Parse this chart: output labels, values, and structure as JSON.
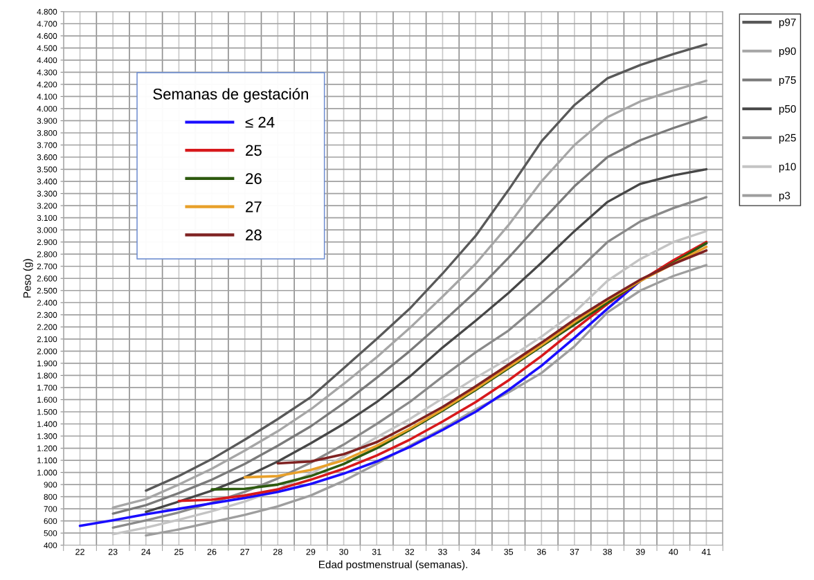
{
  "chart_data": {
    "type": "line",
    "xlabel": "Edad postmenstrual (semanas).",
    "ylabel": "Peso (g)",
    "legend_title": "Semanas de gestación",
    "categories": [
      "22",
      "23",
      "24",
      "25",
      "26",
      "27",
      "28",
      "29",
      "30",
      "31",
      "32",
      "33",
      "34",
      "35",
      "36",
      "37",
      "38",
      "39",
      "40",
      "41"
    ],
    "ylim": [
      400,
      4800
    ],
    "yticks": [
      {
        "value": 400,
        "label": "400"
      },
      {
        "value": 500,
        "label": "500"
      },
      {
        "value": 600,
        "label": "600"
      },
      {
        "value": 700,
        "label": "700"
      },
      {
        "value": 800,
        "label": "800"
      },
      {
        "value": 900,
        "label": "900"
      },
      {
        "value": 1000,
        "label": "1.000"
      },
      {
        "value": 1100,
        "label": "1.100"
      },
      {
        "value": 1200,
        "label": "1.200"
      },
      {
        "value": 1300,
        "label": "1.300"
      },
      {
        "value": 1400,
        "label": "1.400"
      },
      {
        "value": 1500,
        "label": "1.500"
      },
      {
        "value": 1600,
        "label": "1.600"
      },
      {
        "value": 1700,
        "label": "1.700"
      },
      {
        "value": 1800,
        "label": "1.800"
      },
      {
        "value": 1900,
        "label": "1.900"
      },
      {
        "value": 2000,
        "label": "2.000"
      },
      {
        "value": 2100,
        "label": "2.100"
      },
      {
        "value": 2200,
        "label": "2.200"
      },
      {
        "value": 2300,
        "label": "2.300"
      },
      {
        "value": 2400,
        "label": "2.400"
      },
      {
        "value": 2500,
        "label": "2.500"
      },
      {
        "value": 2600,
        "label": "2.600"
      },
      {
        "value": 2700,
        "label": "2.700"
      },
      {
        "value": 2800,
        "label": "2.800"
      },
      {
        "value": 2900,
        "label": "2.900"
      },
      {
        "value": 3000,
        "label": "3.000"
      },
      {
        "value": 3100,
        "label": "3.100"
      },
      {
        "value": 3200,
        "label": "3.200"
      },
      {
        "value": 3300,
        "label": "3.300"
      },
      {
        "value": 3400,
        "label": "3.400"
      },
      {
        "value": 3500,
        "label": "3.500"
      },
      {
        "value": 3600,
        "label": "3.600"
      },
      {
        "value": 3700,
        "label": "3.700"
      },
      {
        "value": 3800,
        "label": "3.800"
      },
      {
        "value": 3900,
        "label": "3.900"
      },
      {
        "value": 4000,
        "label": "4.000"
      },
      {
        "value": 4100,
        "label": "4.100"
      },
      {
        "value": 4200,
        "label": "4.200"
      },
      {
        "value": 4300,
        "label": "4.300"
      },
      {
        "value": 4400,
        "label": "4.400"
      },
      {
        "value": 4500,
        "label": "4.500"
      },
      {
        "value": 4600,
        "label": "4.600"
      },
      {
        "value": 4700,
        "label": "4.700"
      },
      {
        "value": 4800,
        "label": "4.800"
      }
    ],
    "grid": true,
    "legend": "top right",
    "marker": "none",
    "line_style": "solid",
    "series": [
      {
        "name": "p97",
        "color": "#595959",
        "values": [
          null,
          null,
          850,
          970,
          1110,
          1270,
          1440,
          1620,
          1860,
          2100,
          2350,
          2640,
          2950,
          3330,
          3730,
          4030,
          4250,
          4360,
          4450,
          4530
        ]
      },
      {
        "name": "p90",
        "color": "#a6a6a6",
        "values": [
          null,
          710,
          780,
          900,
          1030,
          1180,
          1340,
          1520,
          1730,
          1950,
          2190,
          2450,
          2720,
          3040,
          3400,
          3700,
          3930,
          4060,
          4150,
          4230
        ]
      },
      {
        "name": "p75",
        "color": "#7a7a7a",
        "values": [
          null,
          660,
          730,
          830,
          940,
          1070,
          1220,
          1380,
          1570,
          1780,
          2000,
          2240,
          2490,
          2770,
          3070,
          3360,
          3600,
          3740,
          3840,
          3930
        ]
      },
      {
        "name": "p50",
        "color": "#474747",
        "values": [
          null,
          null,
          675,
          760,
          850,
          960,
          1090,
          1240,
          1400,
          1580,
          1790,
          2030,
          2250,
          2480,
          2730,
          2990,
          3230,
          3380,
          3450,
          3500
        ]
      },
      {
        "name": "p25",
        "color": "#8a8a8a",
        "values": [
          null,
          545,
          605,
          670,
          750,
          840,
          950,
          1080,
          1230,
          1400,
          1580,
          1790,
          1990,
          2170,
          2400,
          2640,
          2900,
          3070,
          3180,
          3270
        ]
      },
      {
        "name": "p10",
        "color": "#c4c4c4",
        "values": [
          null,
          490,
          545,
          610,
          680,
          760,
          860,
          990,
          1130,
          1290,
          1440,
          1610,
          1780,
          1940,
          2120,
          2320,
          2580,
          2760,
          2900,
          2990
        ]
      },
      {
        "name": "p3",
        "color": "#9e9e9e",
        "values": [
          null,
          null,
          480,
          530,
          590,
          650,
          720,
          810,
          930,
          1070,
          1220,
          1360,
          1520,
          1660,
          1820,
          2040,
          2320,
          2500,
          2620,
          2710
        ]
      },
      {
        "name": "≤ 24",
        "color": "#1a0dff",
        "values": [
          560,
          605,
          655,
          700,
          745,
          790,
          840,
          905,
          990,
          1090,
          1210,
          1350,
          1500,
          1680,
          1880,
          2110,
          2350,
          2580,
          2740,
          2890
        ]
      },
      {
        "name": "25",
        "color": "#d7191c",
        "values": [
          null,
          null,
          null,
          765,
          775,
          810,
          860,
          940,
          1030,
          1140,
          1270,
          1420,
          1580,
          1760,
          1960,
          2180,
          2390,
          2580,
          2750,
          2900
        ]
      },
      {
        "name": "26",
        "color": "#2d5a0f",
        "values": [
          null,
          null,
          null,
          null,
          860,
          865,
          900,
          970,
          1070,
          1200,
          1350,
          1510,
          1680,
          1860,
          2040,
          2220,
          2400,
          2580,
          2730,
          2890
        ]
      },
      {
        "name": "27",
        "color": "#e8a02a",
        "values": [
          null,
          null,
          null,
          null,
          null,
          960,
          970,
          1020,
          1100,
          1220,
          1360,
          1520,
          1690,
          1870,
          2050,
          2240,
          2420,
          2580,
          2720,
          2860
        ]
      },
      {
        "name": "28",
        "color": "#7f2222",
        "values": [
          null,
          null,
          null,
          null,
          null,
          null,
          1075,
          1090,
          1150,
          1250,
          1390,
          1540,
          1710,
          1890,
          2070,
          2260,
          2430,
          2590,
          2720,
          2830
        ]
      }
    ]
  }
}
